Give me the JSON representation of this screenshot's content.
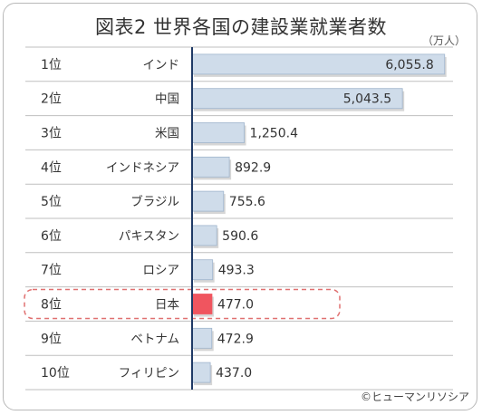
{
  "title": "図表2 世界各国の建設業就業者数",
  "unit_label": "（万人）",
  "credit": "©ヒューマンリソシア",
  "colors": {
    "bar": "#cfdcea",
    "bar_border": "#9fb4cc",
    "highlight_bar": "#f0555f",
    "highlight_border": "#e07070",
    "axis": "#1f3a66",
    "divider": "#bfbfbf"
  },
  "chart_data": {
    "type": "bar",
    "orientation": "horizontal",
    "title": "図表2 世界各国の建設業就業者数",
    "unit": "（万人）",
    "xlim": [
      0,
      6300
    ],
    "grid": false,
    "highlight": "日本",
    "categories": [
      "インド",
      "中国",
      "米国",
      "インドネシア",
      "ブラジル",
      "パキスタン",
      "ロシア",
      "日本",
      "ベトナム",
      "フィリピン"
    ],
    "ranks": [
      "1位",
      "2位",
      "3位",
      "4位",
      "5位",
      "6位",
      "7位",
      "8位",
      "9位",
      "10位"
    ],
    "values": [
      6055.8,
      5043.5,
      1250.4,
      892.9,
      755.6,
      590.6,
      493.3,
      477.0,
      472.9,
      437.0
    ],
    "value_labels": [
      "6,055.8",
      "5,043.5",
      "1,250.4",
      "892.9",
      "755.6",
      "590.6",
      "493.3",
      "477.0",
      "472.9",
      "437.0"
    ]
  }
}
